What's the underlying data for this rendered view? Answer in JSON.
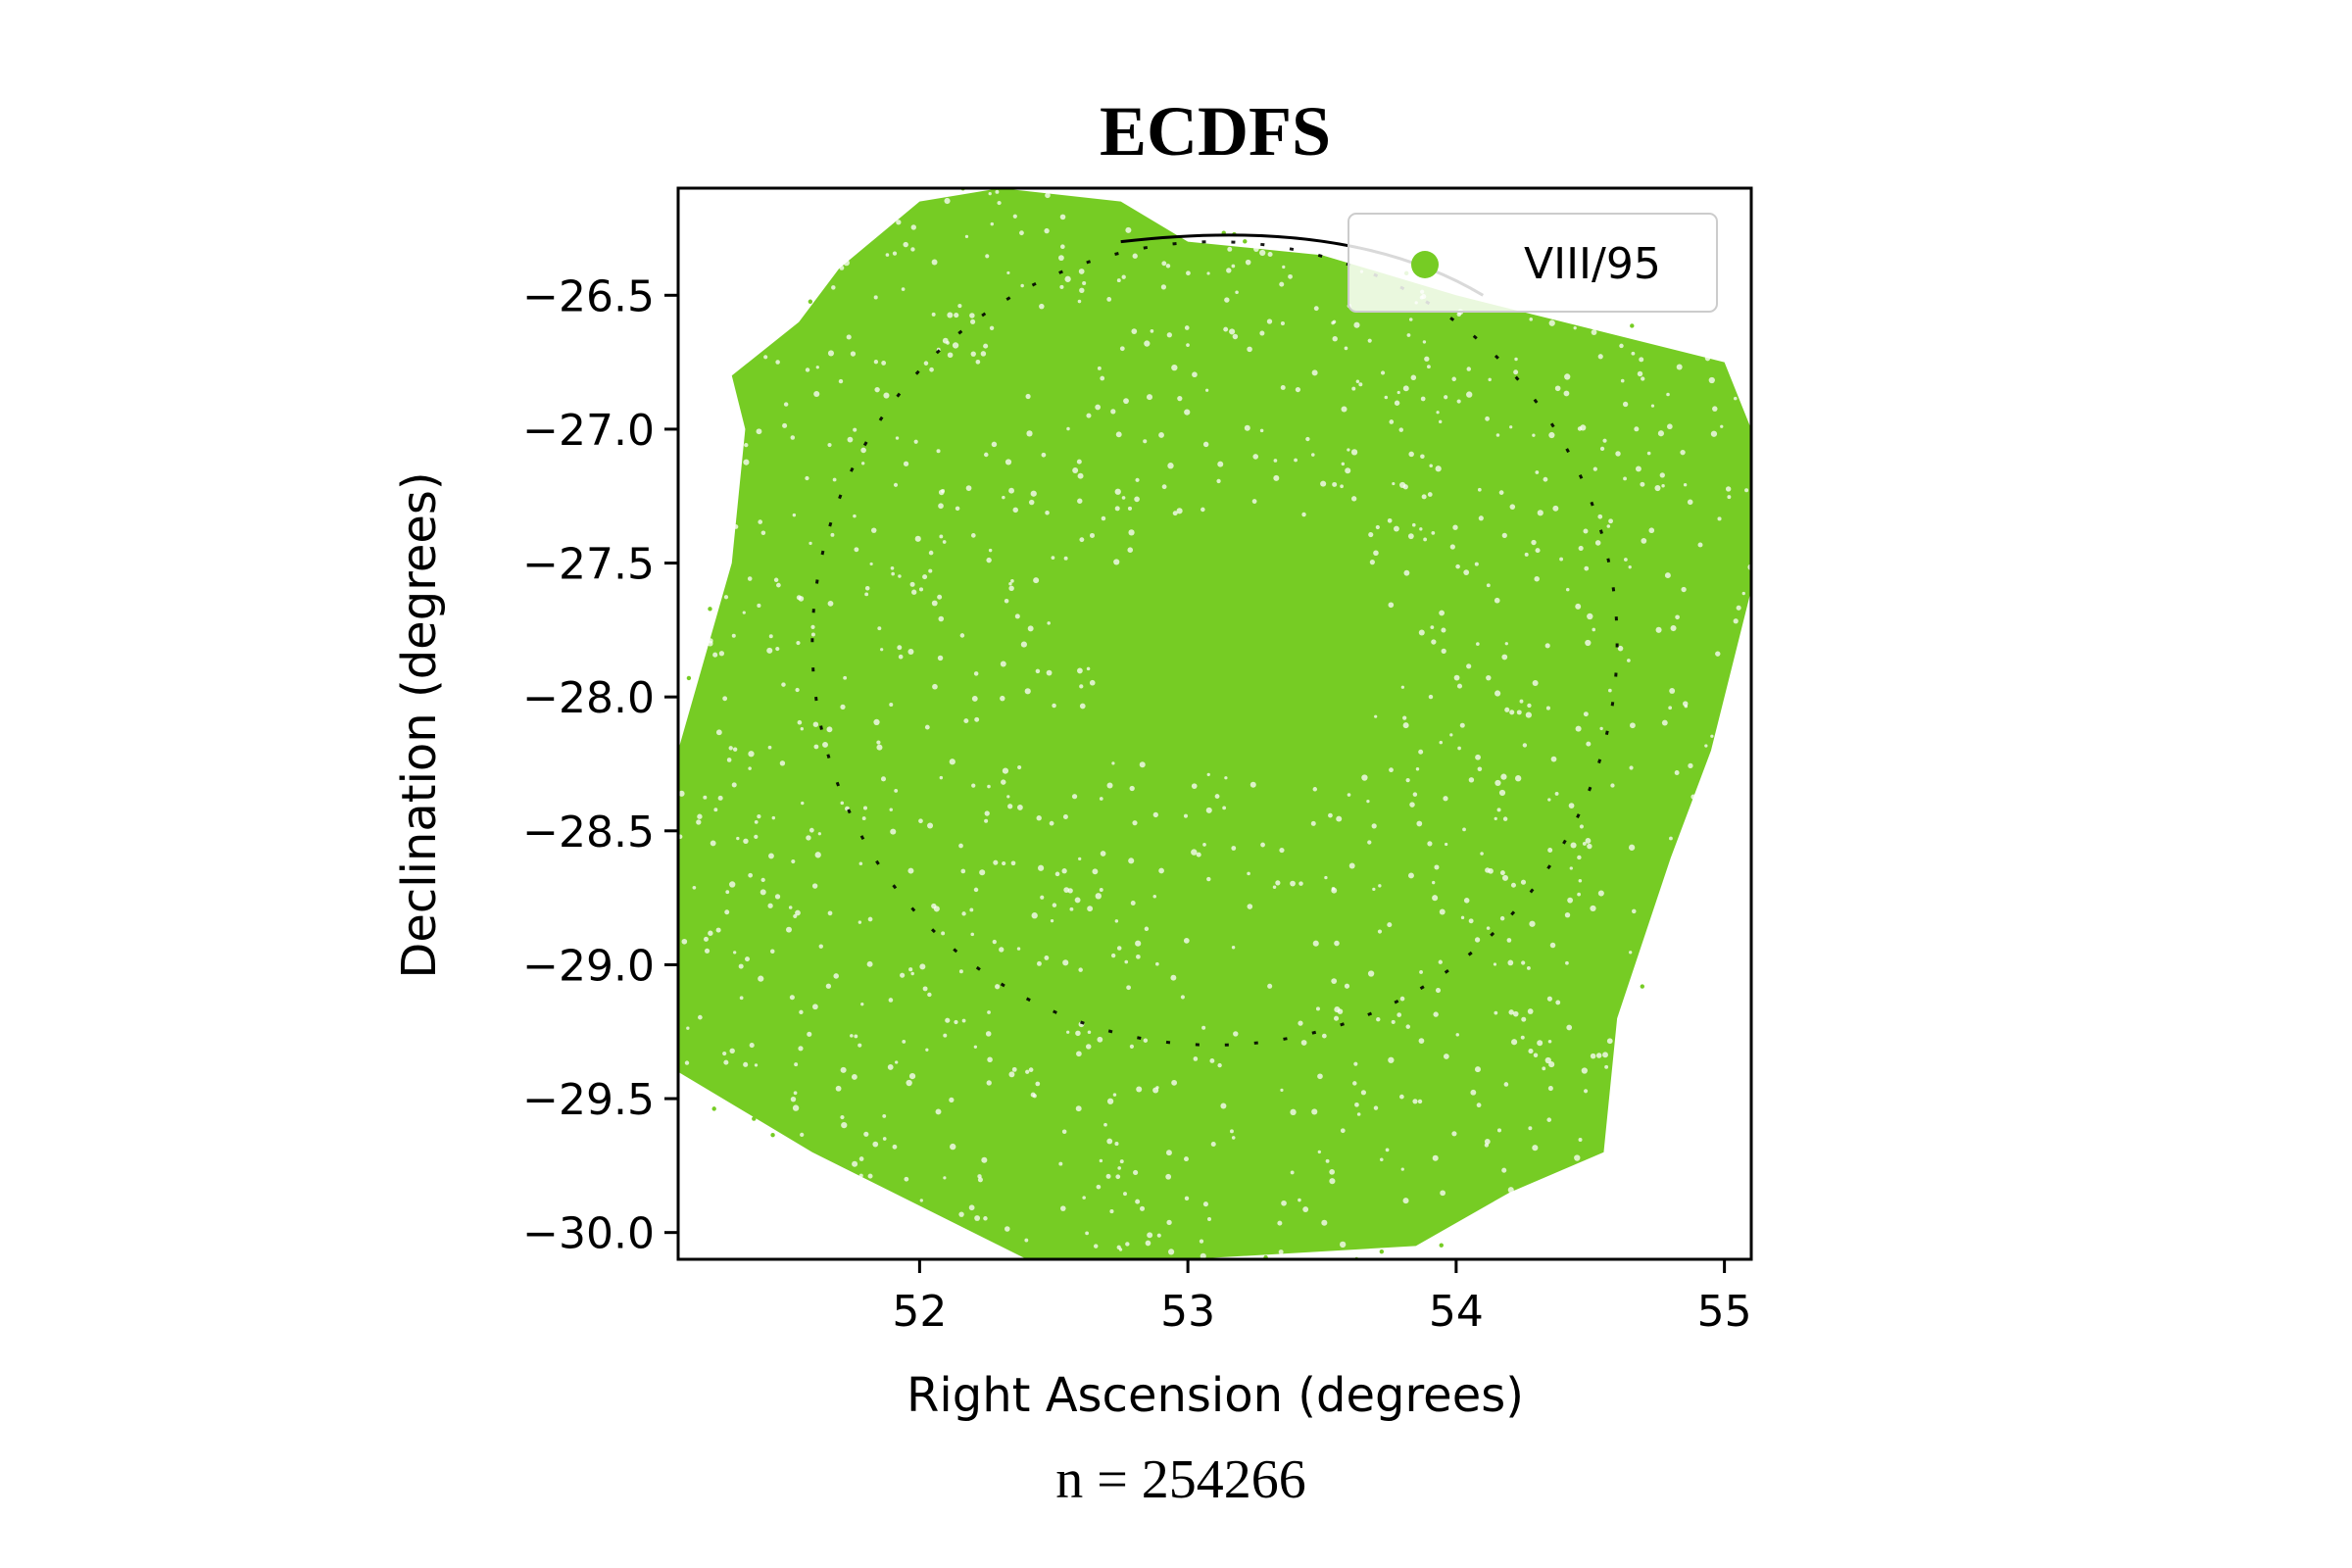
{
  "chart_data": {
    "type": "scatter",
    "title": "ECDFS",
    "xlabel": "Right Ascension (degrees)",
    "ylabel": "Declination (degrees)",
    "annotation": "n = 254266",
    "xlim": [
      51.1,
      55.1
    ],
    "ylim": [
      -30.1,
      -26.1
    ],
    "xticks": [
      52,
      53,
      54,
      55
    ],
    "xtick_labels": [
      "52",
      "53",
      "54",
      "55"
    ],
    "yticks": [
      -26.5,
      -27.0,
      -27.5,
      -28.0,
      -28.5,
      -29.0,
      -29.5,
      -30.0
    ],
    "ytick_labels": [
      "−26.5",
      "−27.0",
      "−27.5",
      "−28.0",
      "−28.5",
      "−29.0",
      "−29.5",
      "−30.0"
    ],
    "legend": {
      "location": "upper right",
      "entries": [
        "VIII/95"
      ]
    },
    "grid": false,
    "series": [
      {
        "name": "VIII/95",
        "color": "#76cc24",
        "count": 254266,
        "footprint_outline": [
          [
            52.0,
            -26.15
          ],
          [
            52.3,
            -26.1
          ],
          [
            52.75,
            -26.15
          ],
          [
            53.0,
            -26.3
          ],
          [
            53.5,
            -26.35
          ],
          [
            54.0,
            -26.5
          ],
          [
            54.4,
            -26.6
          ],
          [
            55.0,
            -26.75
          ],
          [
            55.1,
            -27.0
          ],
          [
            55.1,
            -27.6
          ],
          [
            54.95,
            -28.2
          ],
          [
            54.8,
            -28.6
          ],
          [
            54.6,
            -29.2
          ],
          [
            54.55,
            -29.7
          ],
          [
            54.2,
            -29.85
          ],
          [
            53.85,
            -30.05
          ],
          [
            53.0,
            -30.1
          ],
          [
            52.4,
            -30.1
          ],
          [
            52.0,
            -29.9
          ],
          [
            51.6,
            -29.7
          ],
          [
            51.1,
            -29.4
          ],
          [
            51.1,
            -28.2
          ],
          [
            51.3,
            -27.5
          ],
          [
            51.35,
            -27.0
          ],
          [
            51.3,
            -26.8
          ],
          [
            51.55,
            -26.6
          ],
          [
            51.7,
            -26.4
          ]
        ]
      }
    ],
    "reference_circle": {
      "center": [
        53.1,
        -27.8
      ],
      "radius_deg": 1.5,
      "color": "#000000"
    }
  }
}
